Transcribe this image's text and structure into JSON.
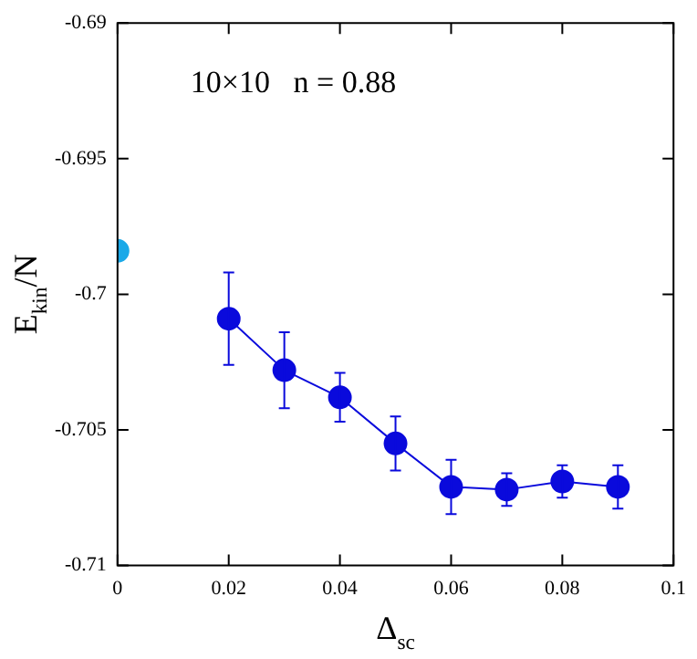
{
  "chart_data": {
    "type": "line",
    "xlabel": "Δ$_{sc}$",
    "ylabel": "E$_{kin}$/N",
    "annotations": [
      "10×10   n = 0.88"
    ],
    "xlim": [
      0,
      0.1
    ],
    "xticks": [
      0,
      0.02,
      0.04,
      0.06,
      0.08,
      0.1
    ],
    "ylim": [
      -0.71,
      -0.69
    ],
    "yticks": [
      -0.71,
      -0.705,
      -0.7,
      -0.695,
      -0.69
    ],
    "grid": false,
    "legend": false,
    "marker": "circle",
    "series": [
      {
        "type": "scatter",
        "color": "#1aa9e8",
        "x": [
          0
        ],
        "values": [
          -0.6984
        ]
      },
      {
        "type": "line",
        "color": "#0a0adc",
        "x": [
          0.02,
          0.03,
          0.04,
          0.05,
          0.06,
          0.07,
          0.08,
          0.09
        ],
        "values": [
          -0.7009,
          -0.7028,
          -0.7038,
          -0.7055,
          -0.7071,
          -0.7072,
          -0.7069,
          -0.7071
        ],
        "errors": [
          0.0017,
          0.0014,
          0.0009,
          0.001,
          0.001,
          0.0006,
          0.0006,
          0.0008
        ]
      }
    ]
  }
}
